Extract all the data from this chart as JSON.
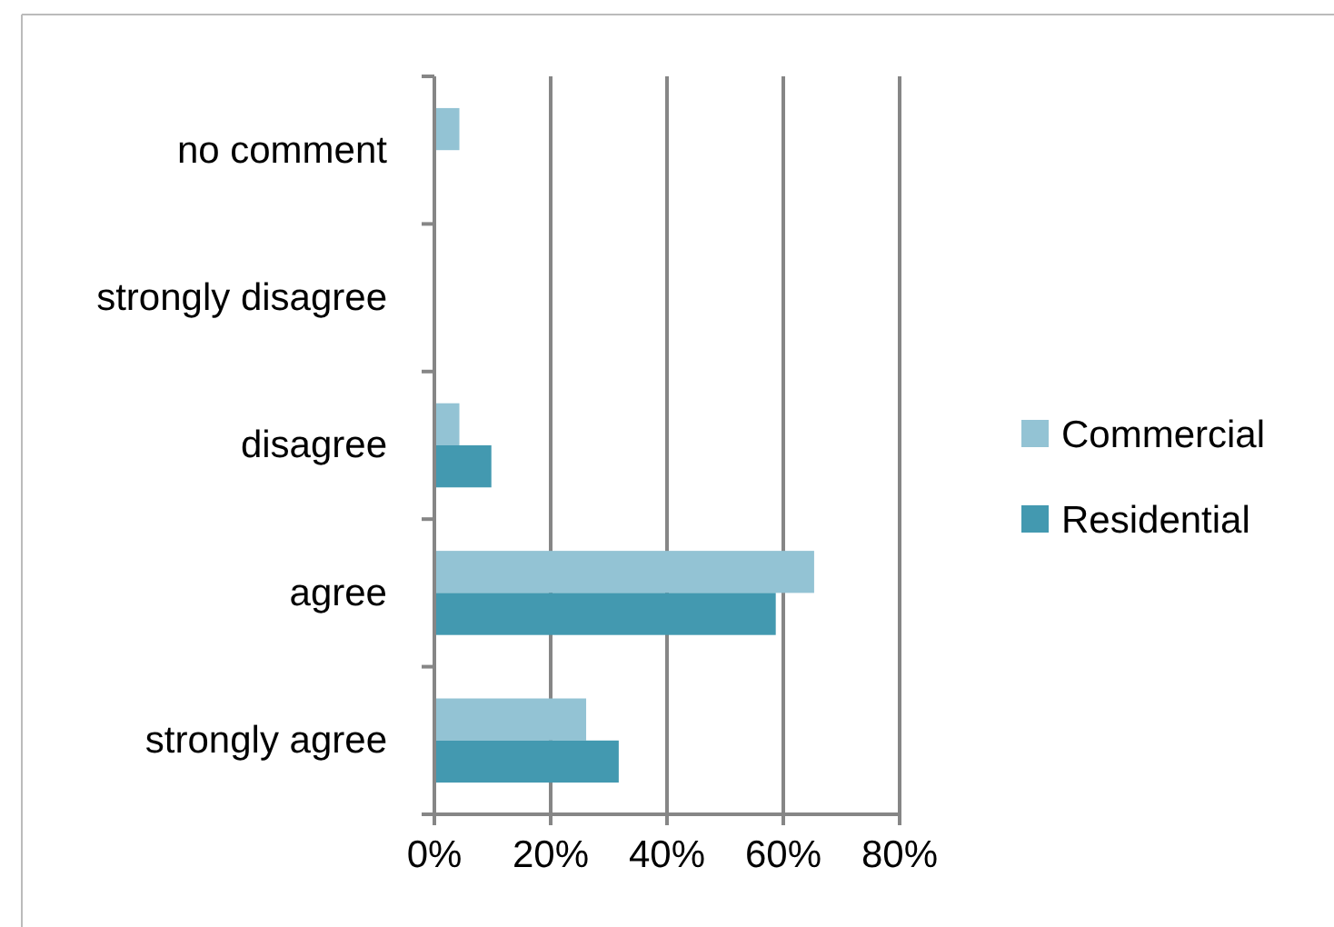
{
  "chart_data": {
    "type": "bar",
    "orientation": "horizontal",
    "categories": [
      "no comment",
      "strongly disagree",
      "disagree",
      "agree",
      "strongly agree"
    ],
    "series": [
      {
        "name": "Commercial",
        "color": "#93c3d4",
        "values": [
          4.3,
          0,
          4.3,
          65.3,
          26.1
        ]
      },
      {
        "name": "Residential",
        "color": "#4399b0",
        "values": [
          null,
          0,
          9.8,
          58.7,
          31.7
        ]
      }
    ],
    "xlim": [
      0,
      80
    ],
    "xticks": [
      {
        "value": 0,
        "label": "0%"
      },
      {
        "value": 20,
        "label": "20%"
      },
      {
        "value": 40,
        "label": "40%"
      },
      {
        "value": 60,
        "label": "60%"
      },
      {
        "value": 80,
        "label": "80%"
      }
    ],
    "grid": "x",
    "legend": "right"
  }
}
